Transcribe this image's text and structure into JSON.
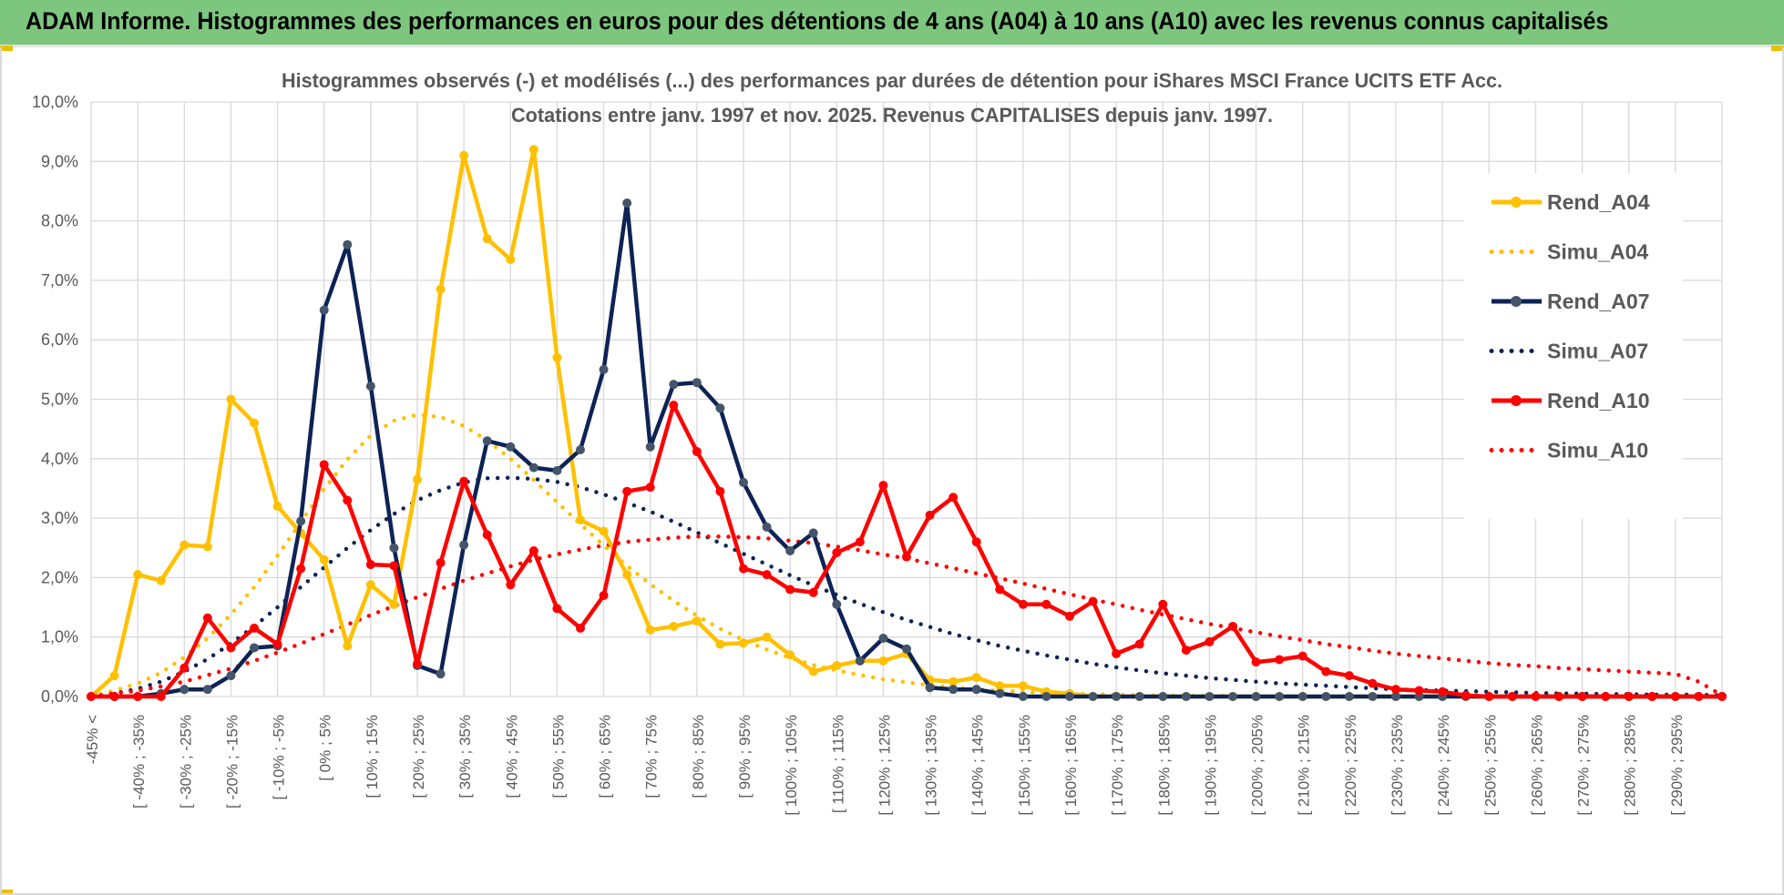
{
  "banner": {
    "title": "ADAM Informe. Histogrammes des performances en euros pour des détentions de 4 ans (A04) à 10 ans (A10) avec les revenus connus capitalisés"
  },
  "colors": {
    "banner_bg": "#7dc67e",
    "A04": "#ffc000",
    "A07": "#0d2356",
    "A10": "#ff0000",
    "grid": "#d9d9d9",
    "text": "#595959"
  },
  "chart_data": {
    "type": "line",
    "title_lines": [
      "Histogrammes observés (-) et modélisés (...) des performances par durées de détention pour iShares MSCI France UCITS ETF Acc.",
      "Cotations entre janv. 1997 et nov. 2025. Revenus CAPITALISES depuis janv. 1997."
    ],
    "ylim": [
      0,
      10
    ],
    "y_ticks": [
      "0,0%",
      "1,0%",
      "2,0%",
      "3,0%",
      "4,0%",
      "5,0%",
      "6,0%",
      "7,0%",
      "8,0%",
      "9,0%",
      "10,0%"
    ],
    "grid": true,
    "legend_position": "right",
    "categories": [
      "-45% <",
      "[ -45% ; -40% [",
      "[ -40% ; -35% [",
      "[ -35% ; -30% [",
      "[ -30% ; -25% [",
      "[ -25% ; -20% [",
      "[ -20% ; -15% [",
      "[ -15% ; -10% [",
      "[ -10% ; -5% [",
      "[ -5% ; 0% [",
      "[ 0% ; 5% [",
      "[ 5% ; 10% [",
      "[ 10% ; 15% [",
      "[ 15% ; 20% [",
      "[ 20% ; 25% [",
      "[ 25% ; 30% [",
      "[ 30% ; 35% [",
      "[ 35% ; 40% [",
      "[ 40% ; 45% [",
      "[ 45% ; 50% [",
      "[ 50% ; 55% [",
      "[ 55% ; 60% [",
      "[ 60% ; 65% [",
      "[ 65% ; 70% [",
      "[ 70% ; 75% [",
      "[ 75% ; 80% [",
      "[ 80% ; 85% [",
      "[ 85% ; 90% [",
      "[ 90% ; 95% [",
      "[ 95% ; 100% [",
      "[ 100% ; 105% [",
      "[ 105% ; 110% [",
      "[ 110% ; 115% [",
      "[ 115% ; 120% [",
      "[ 120% ; 125% [",
      "[ 125% ; 130% [",
      "[ 130% ; 135% [",
      "[ 135% ; 140% [",
      "[ 140% ; 145% [",
      "[ 145% ; 150% [",
      "[ 150% ; 155% [",
      "[ 155% ; 160% [",
      "[ 160% ; 165% [",
      "[ 165% ; 170% [",
      "[ 170% ; 175% [",
      "[ 175% ; 180% [",
      "[ 180% ; 185% [",
      "[ 185% ; 190% [",
      "[ 190% ; 195% [",
      "[ 195% ; 200% [",
      "[ 200% ; 205% [",
      "[ 205% ; 210% [",
      "[ 210% ; 215% [",
      "[ 215% ; 220% [",
      "[ 220% ; 225% [",
      "[ 225% ; 230% [",
      "[ 230% ; 235% [",
      "[ 235% ; 240% [",
      "[ 240% ; 245% [",
      "[ 245% ; 250% [",
      "[ 250% ; 255% [",
      "[ 255% ; 260% [",
      "[ 260% ; 265% [",
      "[ 265% ; 270% [",
      "[ 270% ; 275% [",
      "[ 275% ; 280% [",
      "[ 280% ; 285% [",
      "[ 285% ; 290% [",
      "[ 290% ; 295% [",
      "[ 295% ; 300% [",
      "300% >"
    ],
    "x_tick_labels_shown": [
      "-45% <",
      "[ -40% ; -35%",
      "[ -30% ; -25%",
      "[ -20% ; -15%",
      "[ -10% ; -5%",
      "[ 0% ; 5%",
      "[ 10% ; 15%",
      "[ 20% ; 25%",
      "[ 30% ; 35%",
      "[ 40% ; 45%",
      "[ 50% ; 55%",
      "[ 60% ; 65%",
      "[ 70% ; 75%",
      "[ 80% ; 85%",
      "[ 90% ; 95%",
      "[ 100% ; 105%",
      "[ 110% ; 115%",
      "[ 120% ; 125%",
      "[ 130% ; 135%",
      "[ 140% ; 145%",
      "[ 150% ; 155%",
      "[ 160% ; 165%",
      "[ 170% ; 175%",
      "[ 180% ; 185%",
      "[ 190% ; 195%",
      "[ 200% ; 205%",
      "[ 210% ; 215%",
      "[ 220% ; 225%",
      "[ 230% ; 235%",
      "[ 240% ; 245%",
      "[ 250% ; 255%",
      "[ 260% ; 265%",
      "[ 270% ; 275%",
      "[ 280% ; 285%",
      "[ 290% ; 295%"
    ],
    "series": [
      {
        "name": "Rend_A04",
        "style": "solid",
        "color": "#ffc000",
        "values": [
          0,
          0.35,
          2.05,
          1.95,
          2.55,
          2.52,
          5.0,
          4.6,
          3.2,
          2.75,
          2.3,
          0.85,
          1.88,
          1.55,
          3.65,
          6.85,
          9.1,
          7.7,
          7.35,
          9.2,
          5.7,
          2.97,
          2.78,
          2.05,
          1.12,
          1.18,
          1.27,
          0.88,
          0.9,
          1.0,
          0.7,
          0.42,
          0.52,
          0.6,
          0.6,
          0.72,
          0.28,
          0.25,
          0.32,
          0.18,
          0.18,
          0.08,
          0.05,
          0,
          0,
          0,
          0,
          0,
          0,
          0,
          0,
          0,
          0,
          0,
          0,
          0,
          0,
          0,
          0,
          0,
          0,
          0,
          0,
          0,
          0,
          0,
          0,
          0,
          0,
          0,
          0
        ]
      },
      {
        "name": "Simu_A04",
        "style": "dotted",
        "color": "#ffc000",
        "values": [
          0,
          0.1,
          0.22,
          0.4,
          0.66,
          0.98,
          1.38,
          1.84,
          2.37,
          2.93,
          3.49,
          3.99,
          4.39,
          4.64,
          4.74,
          4.7,
          4.55,
          4.31,
          4.0,
          3.64,
          3.27,
          2.9,
          2.54,
          2.2,
          1.89,
          1.61,
          1.36,
          1.14,
          0.95,
          0.79,
          0.65,
          0.53,
          0.44,
          0.36,
          0.29,
          0.24,
          0.19,
          0.15,
          0.12,
          0.1,
          0.08,
          0.06,
          0.05,
          0.04,
          0.03,
          0.02,
          0.02,
          0.01,
          0.01,
          0.01,
          0,
          0,
          0,
          0,
          0,
          0,
          0,
          0,
          0,
          0,
          0,
          0,
          0,
          0,
          0,
          0,
          0,
          0,
          0,
          0,
          0
        ]
      },
      {
        "name": "Rend_A07",
        "style": "solid",
        "color": "#0d2356",
        "values": [
          0,
          0,
          0,
          0.05,
          0.12,
          0.12,
          0.35,
          0.82,
          0.85,
          2.95,
          6.5,
          7.6,
          5.22,
          2.5,
          0.52,
          0.38,
          2.55,
          4.3,
          4.2,
          3.85,
          3.8,
          4.15,
          5.5,
          8.3,
          4.2,
          5.25,
          5.28,
          4.85,
          3.6,
          2.85,
          2.45,
          2.75,
          1.55,
          0.6,
          0.98,
          0.8,
          0.15,
          0.12,
          0.12,
          0.05,
          0,
          0,
          0,
          0,
          0,
          0,
          0,
          0,
          0,
          0,
          0,
          0,
          0,
          0,
          0,
          0,
          0,
          0,
          0,
          0,
          0,
          0,
          0,
          0,
          0,
          0,
          0,
          0,
          0,
          0,
          0
        ]
      },
      {
        "name": "Simu_A07",
        "style": "dotted",
        "color": "#0d2356",
        "values": [
          0,
          0.05,
          0.13,
          0.25,
          0.42,
          0.63,
          0.89,
          1.18,
          1.5,
          1.84,
          2.17,
          2.5,
          2.8,
          3.07,
          3.3,
          3.47,
          3.6,
          3.67,
          3.68,
          3.66,
          3.61,
          3.52,
          3.4,
          3.26,
          3.11,
          2.94,
          2.76,
          2.58,
          2.4,
          2.22,
          2.04,
          1.87,
          1.71,
          1.56,
          1.42,
          1.29,
          1.17,
          1.05,
          0.95,
          0.85,
          0.77,
          0.69,
          0.62,
          0.55,
          0.49,
          0.44,
          0.39,
          0.35,
          0.31,
          0.28,
          0.25,
          0.22,
          0.2,
          0.18,
          0.16,
          0.14,
          0.12,
          0.11,
          0.1,
          0.09,
          0.08,
          0.07,
          0.06,
          0.05,
          0.05,
          0.04,
          0.04,
          0.03,
          0.03,
          0.03,
          0.02
        ]
      },
      {
        "name": "Rend_A10",
        "style": "solid",
        "color": "#ff0000",
        "values": [
          0,
          0,
          0,
          0,
          0.48,
          1.32,
          0.82,
          1.15,
          0.88,
          2.15,
          3.9,
          3.3,
          2.22,
          2.2,
          0.55,
          2.25,
          3.62,
          2.72,
          1.88,
          2.45,
          1.48,
          1.15,
          1.7,
          3.45,
          3.52,
          4.9,
          4.12,
          3.45,
          2.15,
          2.05,
          1.8,
          1.75,
          2.42,
          2.6,
          3.55,
          2.35,
          3.05,
          3.35,
          2.6,
          1.8,
          1.55,
          1.55,
          1.35,
          1.6,
          0.72,
          0.88,
          1.55,
          0.78,
          0.92,
          1.18,
          0.58,
          0.62,
          0.68,
          0.42,
          0.35,
          0.22,
          0.12,
          0.1,
          0.08,
          0.02,
          0,
          0,
          0,
          0,
          0,
          0,
          0,
          0,
          0,
          0,
          0
        ]
      },
      {
        "name": "Simu_A10",
        "style": "dotted",
        "color": "#ff0000",
        "values": [
          0,
          0.05,
          0.1,
          0.17,
          0.25,
          0.36,
          0.47,
          0.6,
          0.74,
          0.89,
          1.05,
          1.21,
          1.37,
          1.52,
          1.67,
          1.81,
          1.95,
          2.07,
          2.19,
          2.3,
          2.39,
          2.47,
          2.54,
          2.6,
          2.64,
          2.67,
          2.69,
          2.69,
          2.68,
          2.66,
          2.62,
          2.58,
          2.52,
          2.46,
          2.39,
          2.32,
          2.24,
          2.16,
          2.07,
          1.99,
          1.9,
          1.81,
          1.72,
          1.63,
          1.55,
          1.46,
          1.38,
          1.3,
          1.22,
          1.15,
          1.08,
          1.01,
          0.95,
          0.88,
          0.83,
          0.77,
          0.72,
          0.68,
          0.64,
          0.6,
          0.56,
          0.53,
          0.51,
          0.48,
          0.46,
          0.44,
          0.42,
          0.4,
          0.38,
          0.25,
          0.02
        ]
      }
    ]
  }
}
